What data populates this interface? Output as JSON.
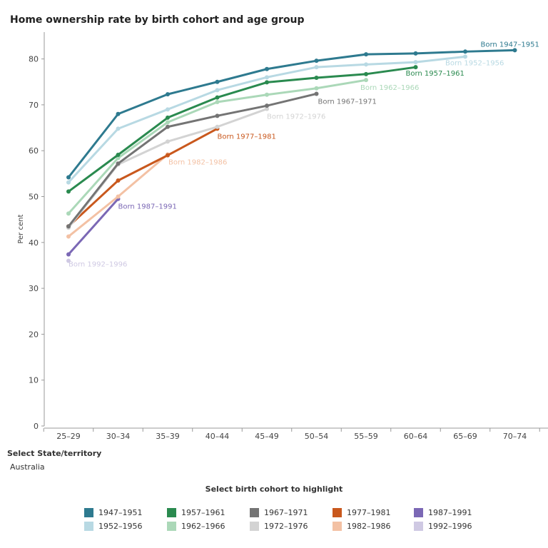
{
  "page": {
    "title": "Home ownership rate by birth cohort and age group"
  },
  "filters": {
    "state_label": "Select State/territory",
    "state_value": "Australia",
    "highlight_label": "Select birth cohort to highlight"
  },
  "chart_data": {
    "type": "line",
    "title": "Home ownership rate by birth cohort and age group",
    "xlabel": "",
    "ylabel": "Per cent",
    "ylim": [
      0,
      85
    ],
    "yticks": [
      0,
      10,
      20,
      30,
      40,
      50,
      60,
      70,
      80
    ],
    "grid": false,
    "categories": [
      "25–29",
      "30–34",
      "35–39",
      "40–44",
      "45–49",
      "50–54",
      "55–59",
      "60–64",
      "65–69",
      "70–74"
    ],
    "series": [
      {
        "name": "1947–1951",
        "label": "Born 1947–1951",
        "color": "#2e7a8f",
        "values": [
          54.2,
          68.0,
          72.3,
          75.0,
          77.8,
          79.6,
          81.0,
          81.2,
          81.6,
          81.9
        ]
      },
      {
        "name": "1952–1956",
        "label": "Born 1952–1956",
        "color": "#b8d9e3",
        "values": [
          53.1,
          64.8,
          69.0,
          73.2,
          76.0,
          78.2,
          78.8,
          79.3,
          80.5,
          null
        ]
      },
      {
        "name": "1957–1961",
        "label": "Born 1957–1961",
        "color": "#2a8a4f",
        "values": [
          51.1,
          59.1,
          67.2,
          71.6,
          74.9,
          75.9,
          76.7,
          78.2,
          null,
          null
        ]
      },
      {
        "name": "1962–1966",
        "label": "Born 1962–1966",
        "color": "#abd8b8",
        "values": [
          46.3,
          58.4,
          66.2,
          70.6,
          72.2,
          73.6,
          75.4,
          null,
          null,
          null
        ]
      },
      {
        "name": "1967–1971",
        "label": "Born 1967–1971",
        "color": "#747474",
        "values": [
          43.5,
          57.2,
          65.2,
          67.6,
          69.8,
          72.4,
          null,
          null,
          null,
          null
        ]
      },
      {
        "name": "1972–1976",
        "label": "Born 1972–1976",
        "color": "#d3d3d3",
        "values": [
          43.2,
          57.0,
          62.0,
          65.2,
          69.1,
          null,
          null,
          null,
          null,
          null
        ]
      },
      {
        "name": "1977–1981",
        "label": "Born 1977–1981",
        "color": "#c9581d",
        "values": [
          43.5,
          53.5,
          59.0,
          64.8,
          null,
          null,
          null,
          null,
          null,
          null
        ]
      },
      {
        "name": "1982–1986",
        "label": "Born 1982–1986",
        "color": "#f3c1a4",
        "values": [
          41.3,
          50.0,
          59.2,
          null,
          null,
          null,
          null,
          null,
          null,
          null
        ]
      },
      {
        "name": "1987–1991",
        "label": "Born 1987–1991",
        "color": "#7b68b5",
        "values": [
          37.4,
          49.5,
          null,
          null,
          null,
          null,
          null,
          null,
          null,
          null
        ]
      },
      {
        "name": "1992–1996",
        "label": "Born 1992–1996",
        "color": "#cfc9e3",
        "values": [
          36.0,
          null,
          null,
          null,
          null,
          null,
          null,
          null,
          null,
          null
        ]
      }
    ],
    "legend": {
      "title": "Select birth cohort to highlight",
      "placement": "bottom",
      "entries": [
        "1947–1951",
        "1952–1956",
        "1957–1961",
        "1962–1966",
        "1967–1971",
        "1972–1976",
        "1977–1981",
        "1982–1986",
        "1987–1991",
        "1992–1996"
      ]
    }
  }
}
